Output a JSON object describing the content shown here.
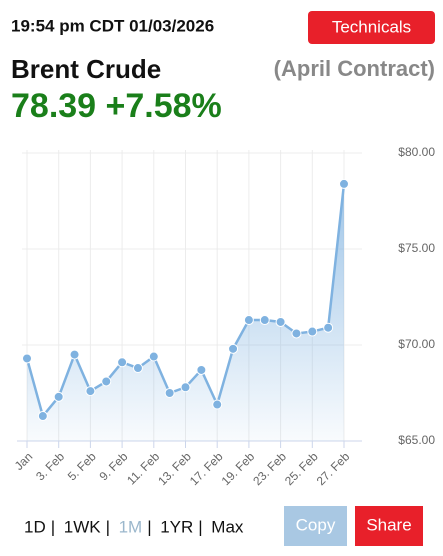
{
  "header": {
    "timestamp": "19:54 pm CDT 01/03/2026",
    "technicals_button": "Technicals",
    "instrument": "Brent Crude",
    "contract": "(April Contract)",
    "price_line": "78.39 +7.58%"
  },
  "chart_data": {
    "type": "area",
    "categories": [
      "Jan",
      null,
      "3. Feb",
      null,
      "5. Feb",
      null,
      "9. Feb",
      null,
      "11. Feb",
      null,
      "13. Feb",
      null,
      "17. Feb",
      null,
      "19. Feb",
      null,
      "23. Feb",
      null,
      "25. Feb",
      null,
      "27. Feb"
    ],
    "values": [
      69.3,
      66.3,
      67.3,
      69.5,
      67.6,
      68.1,
      69.1,
      68.8,
      69.4,
      67.5,
      67.8,
      68.7,
      66.9,
      69.8,
      71.3,
      71.3,
      71.2,
      70.6,
      70.7,
      70.9,
      78.39
    ],
    "color": "#7fb2e0",
    "ylim": [
      65,
      80
    ],
    "yticks": [
      {
        "value": 65,
        "label": "$65.00"
      },
      {
        "value": 70,
        "label": "$70.00"
      },
      {
        "value": 75,
        "label": "$75.00"
      },
      {
        "value": 80,
        "label": "$80.00"
      }
    ],
    "grid": true
  },
  "footer": {
    "ranges": [
      "1D",
      "1WK",
      "1M",
      "1YR",
      "Max"
    ],
    "selected_range_index": 2,
    "copy_button": "Copy",
    "share_button": "Share"
  }
}
